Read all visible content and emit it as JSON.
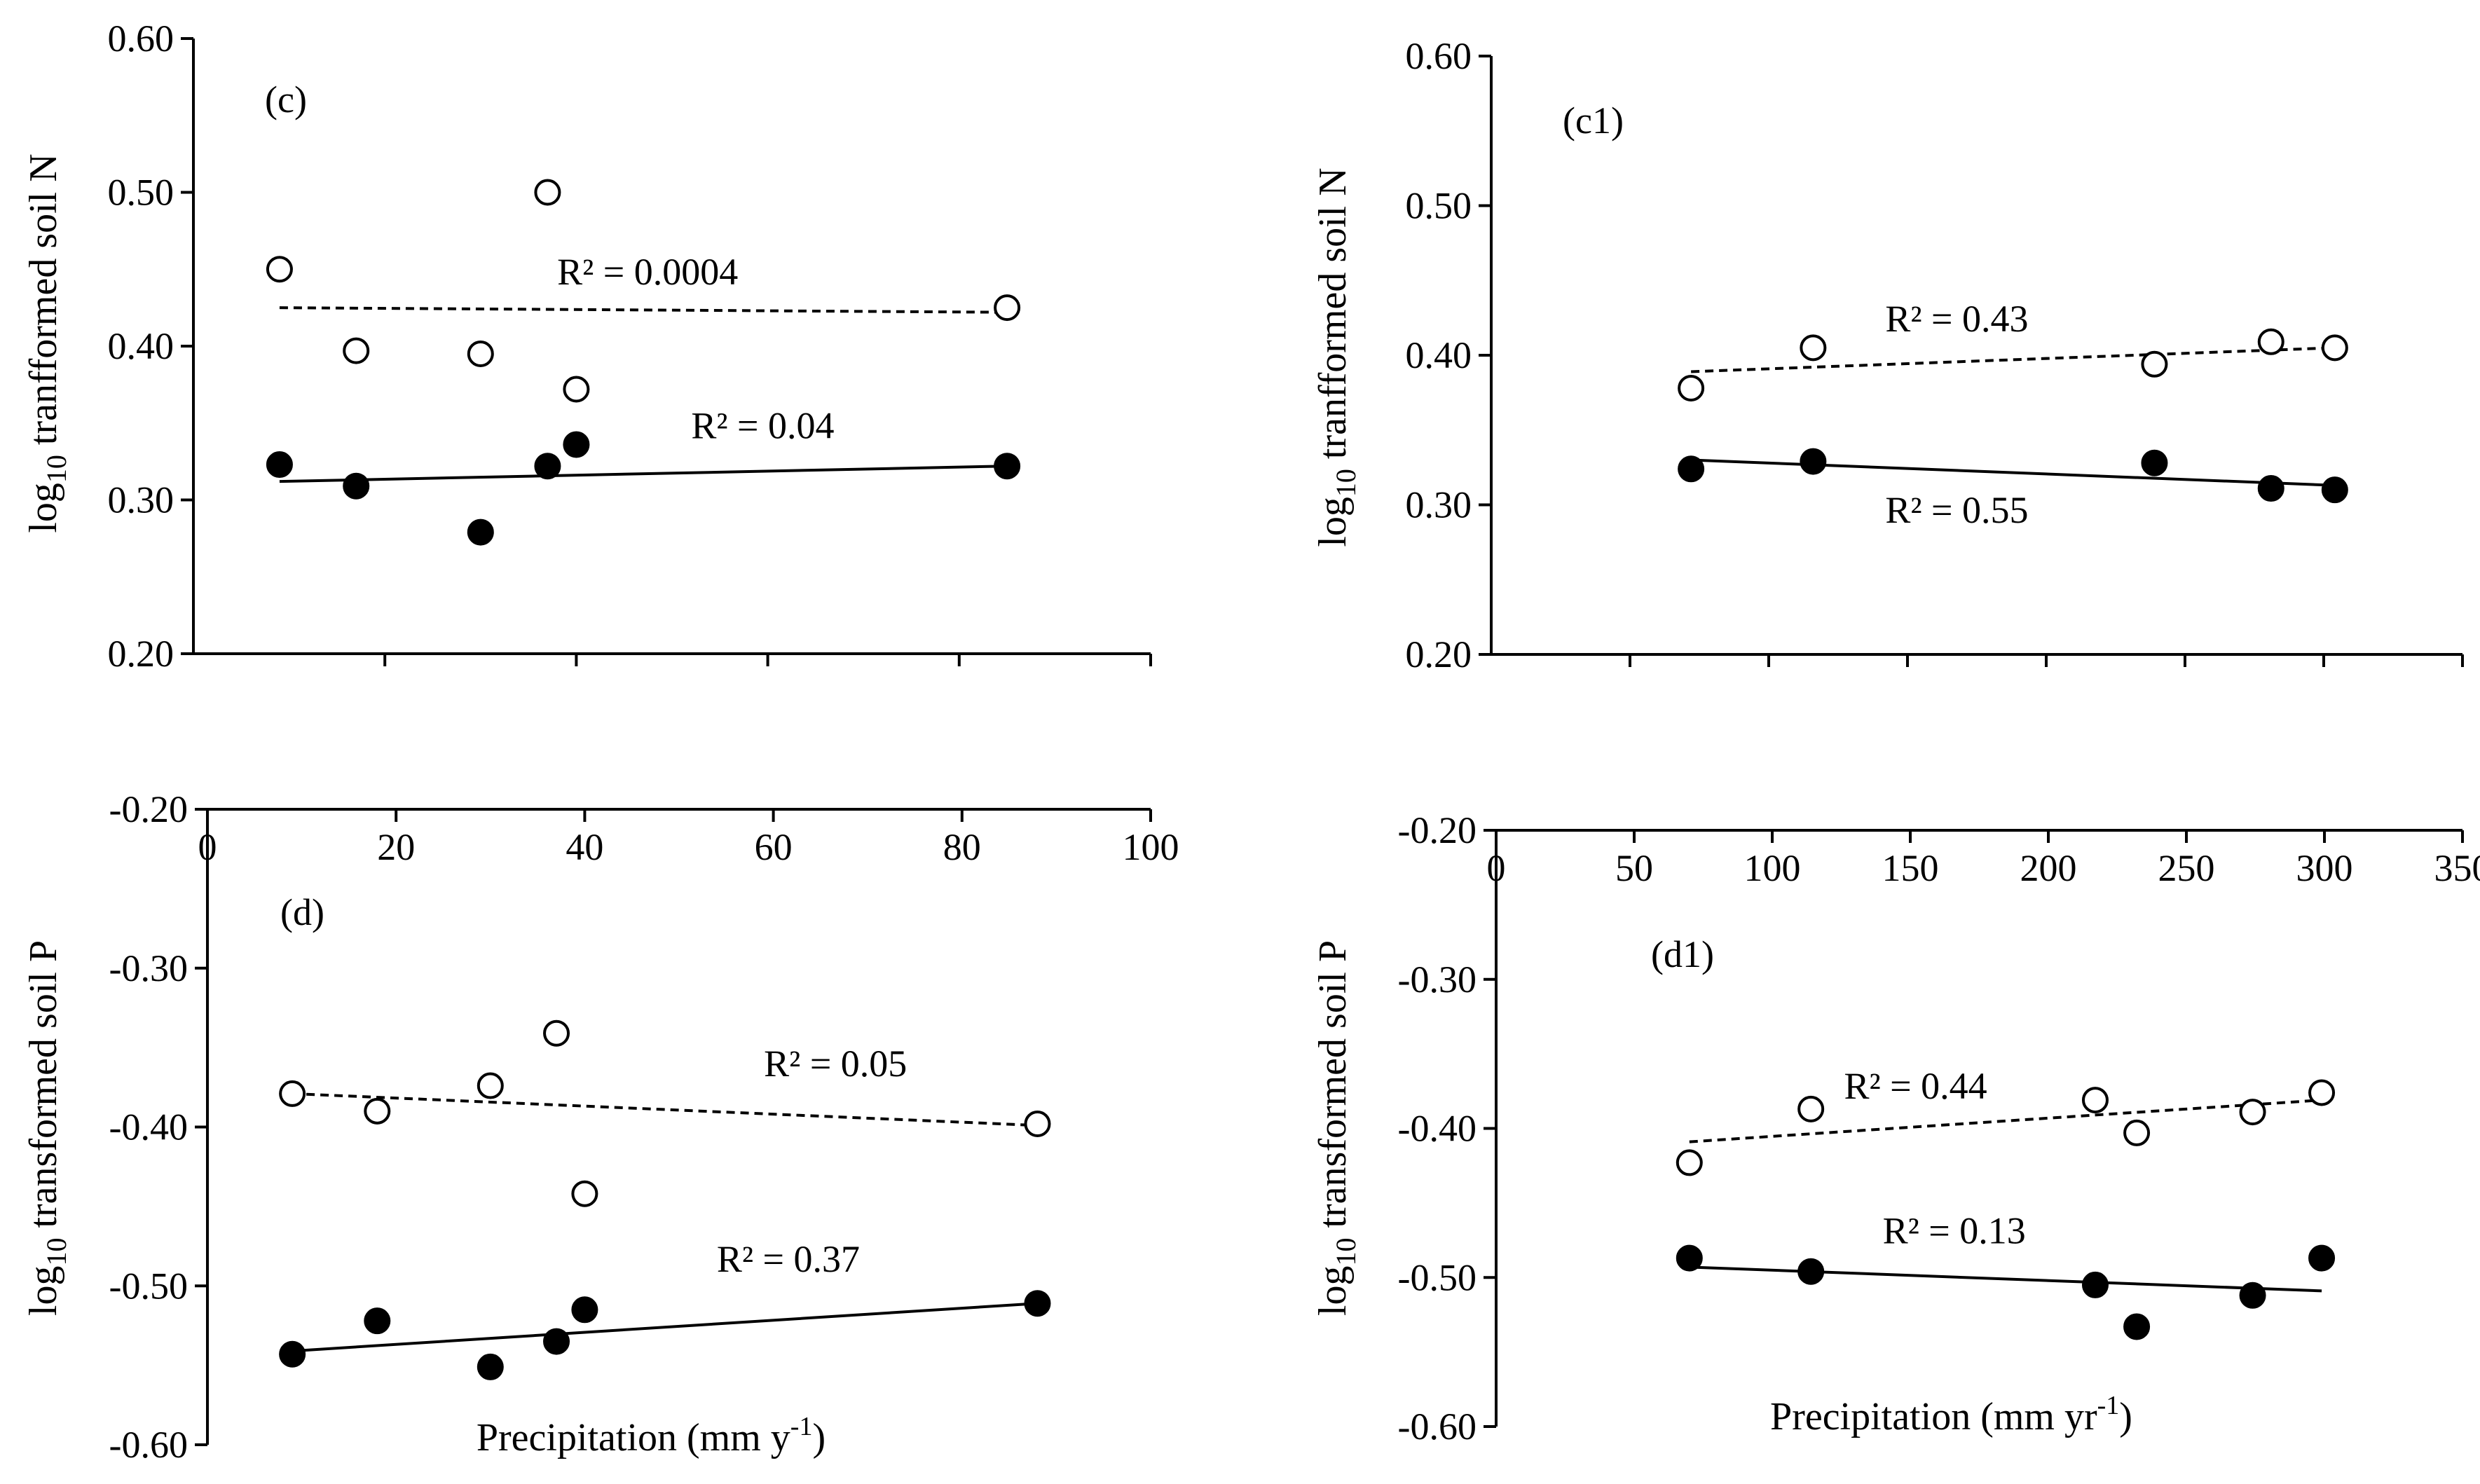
{
  "chart_data": [
    {
      "panel": "(c)",
      "type": "scatter",
      "ylabel_pre": "log",
      "ylabel_sub": "10",
      "ylabel_post": " tranfformed soil N",
      "ylim": [
        0.2,
        0.6
      ],
      "yticks": [
        "0.20",
        "0.30",
        "0.40",
        "0.50",
        "0.60"
      ],
      "xlim": [
        0,
        100
      ],
      "xticks": [],
      "xlabel": "",
      "series": [
        {
          "name": "open",
          "marker": "open-circle",
          "x": [
            9,
            17,
            30,
            37,
            40,
            85
          ],
          "y": [
            0.45,
            0.397,
            0.395,
            0.5,
            0.372,
            0.425
          ],
          "trend": {
            "x": [
              9,
              85
            ],
            "y": [
              0.425,
              0.422
            ],
            "style": "dashed",
            "r2": "R² = 0.0004",
            "label_at": [
              38,
              0.44
            ]
          }
        },
        {
          "name": "filled",
          "marker": "filled-circle",
          "x": [
            9,
            17,
            30,
            37,
            40,
            85
          ],
          "y": [
            0.323,
            0.309,
            0.279,
            0.322,
            0.336,
            0.322
          ],
          "trend": {
            "x": [
              9,
              85
            ],
            "y": [
              0.312,
              0.322
            ],
            "style": "solid",
            "r2": "R² = 0.04",
            "label_at": [
              52,
              0.34
            ]
          }
        }
      ]
    },
    {
      "panel": "(c1)",
      "type": "scatter",
      "ylabel_pre": "log",
      "ylabel_sub": "10",
      "ylabel_post": " tranfformed soil N",
      "ylim": [
        0.2,
        0.6
      ],
      "yticks": [
        "0.20",
        "0.30",
        "0.40",
        "0.50",
        "0.60"
      ],
      "xlim": [
        0,
        350
      ],
      "xticks": [],
      "xlabel": "",
      "series": [
        {
          "name": "open",
          "marker": "open-circle",
          "x": [
            72,
            116,
            239,
            281,
            304
          ],
          "y": [
            0.378,
            0.405,
            0.394,
            0.409,
            0.405
          ],
          "trend": {
            "x": [
              72,
              304
            ],
            "y": [
              0.389,
              0.405
            ],
            "style": "dashed",
            "r2": "R² = 0.43",
            "label_at": [
              142,
              0.416
            ]
          }
        },
        {
          "name": "filled",
          "marker": "filled-circle",
          "x": [
            72,
            116,
            239,
            281,
            304
          ],
          "y": [
            0.324,
            0.329,
            0.328,
            0.311,
            0.31
          ],
          "trend": {
            "x": [
              72,
              304
            ],
            "y": [
              0.33,
              0.313
            ],
            "style": "solid",
            "r2": "R² = 0.55",
            "label_at": [
              142,
              0.288
            ]
          }
        }
      ]
    },
    {
      "panel": "(d)",
      "type": "scatter",
      "ylabel_pre": "log",
      "ylabel_sub": "10",
      "ylabel_post": " transformed soil P",
      "ylim": [
        -0.6,
        -0.2
      ],
      "yticks": [
        "-0.60",
        "-0.50",
        "-0.40",
        "-0.30",
        "-0.20"
      ],
      "xlim": [
        0,
        100
      ],
      "xticks": [
        "0",
        "20",
        "40",
        "60",
        "80",
        "100"
      ],
      "xlabel_pre": "Precipitation (mm y",
      "xlabel_sup": "-1",
      "xlabel_post": ")",
      "series": [
        {
          "name": "open",
          "marker": "open-circle",
          "x": [
            9,
            18,
            30,
            37,
            40,
            88
          ],
          "y": [
            -0.379,
            -0.39,
            -0.374,
            -0.341,
            -0.442,
            -0.398
          ],
          "trend": {
            "x": [
              9,
              88
            ],
            "y": [
              -0.379,
              -0.399
            ],
            "style": "dashed",
            "r2": "R² = 0.05",
            "label_at": [
              59,
              -0.368
            ]
          }
        },
        {
          "name": "filled",
          "marker": "filled-circle",
          "x": [
            9,
            18,
            30,
            37,
            40,
            88
          ],
          "y": [
            -0.543,
            -0.522,
            -0.551,
            -0.535,
            -0.515,
            -0.511
          ],
          "trend": {
            "x": [
              9,
              88
            ],
            "y": [
              -0.541,
              -0.511
            ],
            "style": "solid",
            "r2": "R² = 0.37",
            "label_at": [
              54,
              -0.491
            ]
          }
        }
      ]
    },
    {
      "panel": "(d1)",
      "type": "scatter",
      "ylabel_pre": "log",
      "ylabel_sub": "10",
      "ylabel_post": " transformed soil P",
      "ylim": [
        -0.6,
        -0.2
      ],
      "yticks": [
        "-0.60",
        "-0.50",
        "-0.40",
        "-0.30",
        "-0.20"
      ],
      "xlim": [
        0,
        350
      ],
      "xticks": [
        "0",
        "50",
        "100",
        "150",
        "200",
        "250",
        "300",
        "350"
      ],
      "xlabel_pre": "Precipitation (mm yr",
      "xlabel_sup": "-1",
      "xlabel_post": ")",
      "series": [
        {
          "name": "open",
          "marker": "open-circle",
          "x": [
            70,
            114,
            217,
            232,
            274,
            299
          ],
          "y": [
            -0.423,
            -0.387,
            -0.381,
            -0.403,
            -0.389,
            -0.376
          ],
          "trend": {
            "x": [
              70,
              299
            ],
            "y": [
              -0.409,
              -0.381
            ],
            "style": "dashed",
            "r2": "R² = 0.44",
            "label_at": [
              126,
              -0.38
            ]
          }
        },
        {
          "name": "filled",
          "marker": "filled-circle",
          "x": [
            70,
            114,
            217,
            232,
            274,
            299
          ],
          "y": [
            -0.487,
            -0.496,
            -0.505,
            -0.533,
            -0.512,
            -0.487
          ],
          "trend": {
            "x": [
              70,
              299
            ],
            "y": [
              -0.493,
              -0.509
            ],
            "style": "solid",
            "r2": "R² = 0.13",
            "label_at": [
              140,
              -0.477
            ]
          }
        }
      ]
    }
  ]
}
